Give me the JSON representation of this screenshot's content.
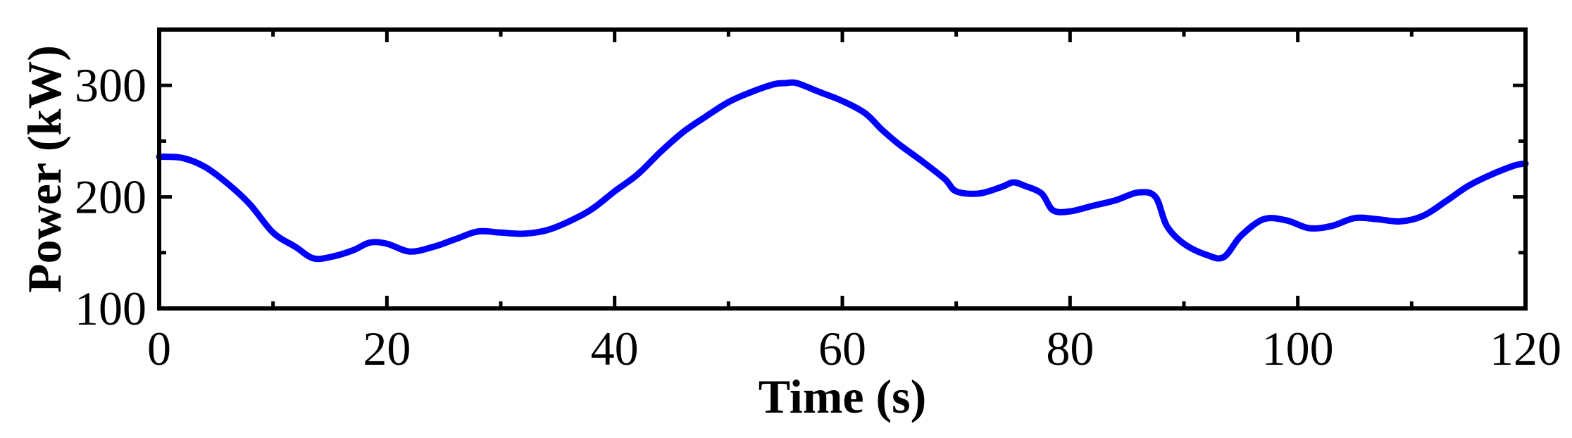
{
  "chart_data": {
    "type": "line",
    "title": "",
    "xlabel": "Time (s)",
    "ylabel": "Power (kW)",
    "xlim": [
      0,
      120
    ],
    "ylim": [
      100,
      350
    ],
    "xticks": [
      0,
      20,
      40,
      60,
      80,
      100,
      120
    ],
    "xtick_labels": [
      "0",
      "20",
      "40",
      "60",
      "80",
      "100",
      "120"
    ],
    "yticks": [
      100,
      200,
      300
    ],
    "ytick_labels": [
      "100",
      "200",
      "300"
    ],
    "grid": false,
    "legend": "none",
    "line_color": "#0000ff",
    "series": [
      {
        "x": [
          0,
          2,
          4,
          6,
          8,
          10,
          12,
          13.5,
          15,
          17,
          18.5,
          20,
          22,
          24,
          26,
          28,
          30,
          32,
          34,
          36,
          38,
          40,
          42,
          44,
          46,
          48,
          50,
          52,
          54,
          55,
          56,
          58,
          60,
          62,
          63.5,
          65,
          67,
          69,
          70,
          72,
          74,
          75,
          76,
          77.5,
          78.5,
          80,
          82,
          84,
          86,
          87.5,
          88.5,
          90,
          92,
          93.5,
          95,
          97,
          99,
          101,
          103,
          105,
          107,
          109,
          111,
          113,
          115,
          117,
          119,
          120
        ],
        "values": [
          236,
          235,
          227,
          212,
          193,
          168,
          155,
          145,
          146,
          152,
          159,
          158,
          151,
          155,
          162,
          169,
          168,
          167,
          170,
          178,
          189,
          205,
          220,
          240,
          258,
          272,
          285,
          294,
          301,
          302,
          302,
          294,
          286,
          275,
          260,
          247,
          232,
          216,
          205,
          203,
          209,
          213,
          210,
          203,
          188,
          187,
          192,
          197,
          204,
          200,
          174,
          158,
          148,
          146,
          165,
          180,
          179,
          172,
          174,
          181,
          180,
          178,
          183,
          196,
          210,
          220,
          228,
          230
        ]
      }
    ]
  }
}
